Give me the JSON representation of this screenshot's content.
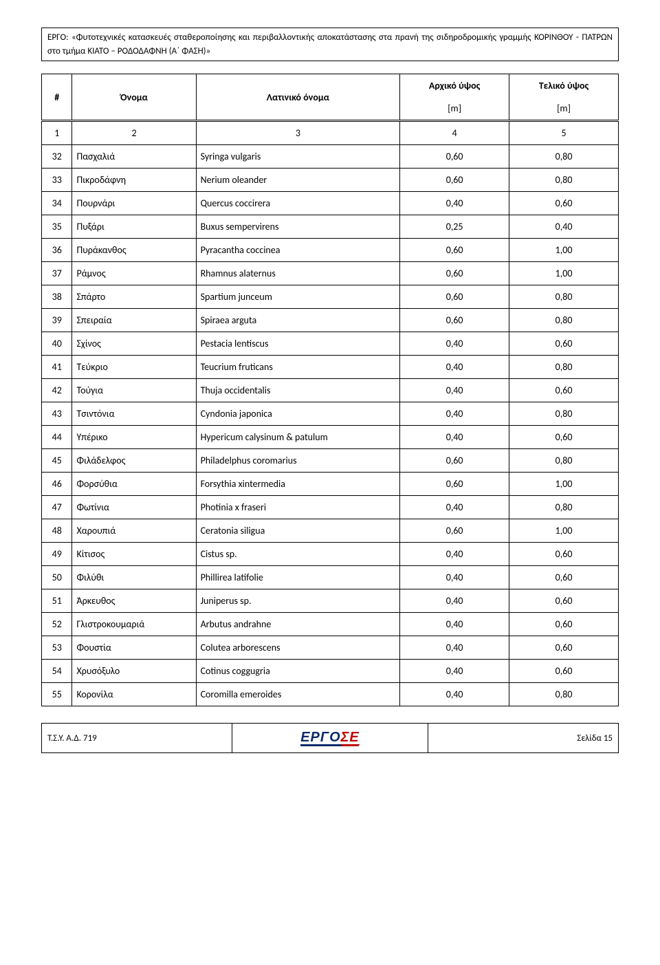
{
  "header": {
    "text": "ΕΡΓΟ: «Φυτοτεχνικές κατασκευές σταθεροποίησης και περιβαλλοντικής αποκατάστασης στα πρανή της σιδηροδρομικής γραμμής ΚΟΡΙΝΘΟΥ - ΠΑΤΡΩΝ στο τμήμα ΚΙΑΤΟ – ΡΟΔΟΔΑΦΝΗ (Α΄ ΦΑΣΗ)»"
  },
  "table": {
    "columns": {
      "num": "#",
      "name": "Όνομα",
      "latin": "Λατινικό όνομα",
      "h1": "Αρχικό ύψος",
      "h2": "Τελικό ύψος",
      "unit": "[m]",
      "col_nums": [
        "1",
        "2",
        "3",
        "4",
        "5"
      ]
    },
    "rows": [
      {
        "n": "32",
        "name": "Πασχαλιά",
        "latin": "Syringa vulgaris",
        "a": "0,60",
        "b": "0,80"
      },
      {
        "n": "33",
        "name": "Πικροδάφνη",
        "latin": "Nerium oleander",
        "a": "0,60",
        "b": "0,80"
      },
      {
        "n": "34",
        "name": "Πουρνάρι",
        "latin": "Quercus coccirera",
        "a": "0,40",
        "b": "0,60"
      },
      {
        "n": "35",
        "name": "Πυξάρι",
        "latin": "Buxus sempervirens",
        "a": "0,25",
        "b": "0,40"
      },
      {
        "n": "36",
        "name": "Πυράκανθος",
        "latin": "Pyracantha coccinea",
        "a": "0,60",
        "b": "1,00"
      },
      {
        "n": "37",
        "name": "Ράμνος",
        "latin": "Rhamnus alaternus",
        "a": "0,60",
        "b": "1,00"
      },
      {
        "n": "38",
        "name": "Σπάρτο",
        "latin": "Spartium junceum",
        "a": "0,60",
        "b": "0,80"
      },
      {
        "n": "39",
        "name": "Σπειραία",
        "latin": "Spiraea arguta",
        "a": "0,60",
        "b": "0,80"
      },
      {
        "n": "40",
        "name": "Σχίνος",
        "latin": "Pestacia lentiscus",
        "a": "0,40",
        "b": "0,60"
      },
      {
        "n": "41",
        "name": "Τεύκριο",
        "latin": "Teucrium fruticans",
        "a": "0,40",
        "b": "0,80"
      },
      {
        "n": "42",
        "name": "Τούγια",
        "latin": "Thuja occidentalis",
        "a": "0,40",
        "b": "0,60"
      },
      {
        "n": "43",
        "name": "Τσιντόνια",
        "latin": "Cyndonia japonica",
        "a": "0,40",
        "b": "0,80"
      },
      {
        "n": "44",
        "name": "Υπέρικο",
        "latin": "Hypericum calysinum & patulum",
        "a": "0,40",
        "b": "0,60"
      },
      {
        "n": "45",
        "name": "Φιλάδελφος",
        "latin": "Philadelphus coromarius",
        "a": "0,60",
        "b": "0,80"
      },
      {
        "n": "46",
        "name": "Φορσύθια",
        "latin": "Forsythia xintermedia",
        "a": "0,60",
        "b": "1,00"
      },
      {
        "n": "47",
        "name": "Φωτίνια",
        "latin": "Photinia x fraseri",
        "a": "0,40",
        "b": "0,80"
      },
      {
        "n": "48",
        "name": "Χαρουπιά",
        "latin": "Ceratonia siligua",
        "a": "0,60",
        "b": "1,00"
      },
      {
        "n": "49",
        "name": "Κίτισος",
        "latin": "Cistus sp.",
        "a": "0,40",
        "b": "0,60"
      },
      {
        "n": "50",
        "name": "Φιλύθι",
        "latin": "Phillirea latifolie",
        "a": "0,40",
        "b": "0,60"
      },
      {
        "n": "51",
        "name": "Άρκευθος",
        "latin": "Juniperus sp.",
        "a": "0,40",
        "b": "0,60"
      },
      {
        "n": "52",
        "name": "Γλιστροκουμαριά",
        "latin": "Arbutus andrahne",
        "a": "0,40",
        "b": "0,60"
      },
      {
        "n": "53",
        "name": "Φουστία",
        "latin": "Colutea arborescens",
        "a": "0,40",
        "b": "0,60"
      },
      {
        "n": "54",
        "name": "Χρυσόξυλο",
        "latin": "Cotinus coggugria",
        "a": "0,40",
        "b": "0,60"
      },
      {
        "n": "55",
        "name": "Κορονίλα",
        "latin": "Coromilla emeroides",
        "a": "0,40",
        "b": "0,80"
      }
    ]
  },
  "footer": {
    "left": "Τ.Σ.Υ. Α.Δ. 719",
    "logo": "ΕΡΓΟΣΕ",
    "right": "Σελίδα 15"
  },
  "style": {
    "background": "#ffffff",
    "border_color": "#000000",
    "text_color": "#000000",
    "header_fontsize": 13,
    "cell_fontsize": 14,
    "logo_blue": "#0b2b6b",
    "logo_red": "#c00000"
  }
}
